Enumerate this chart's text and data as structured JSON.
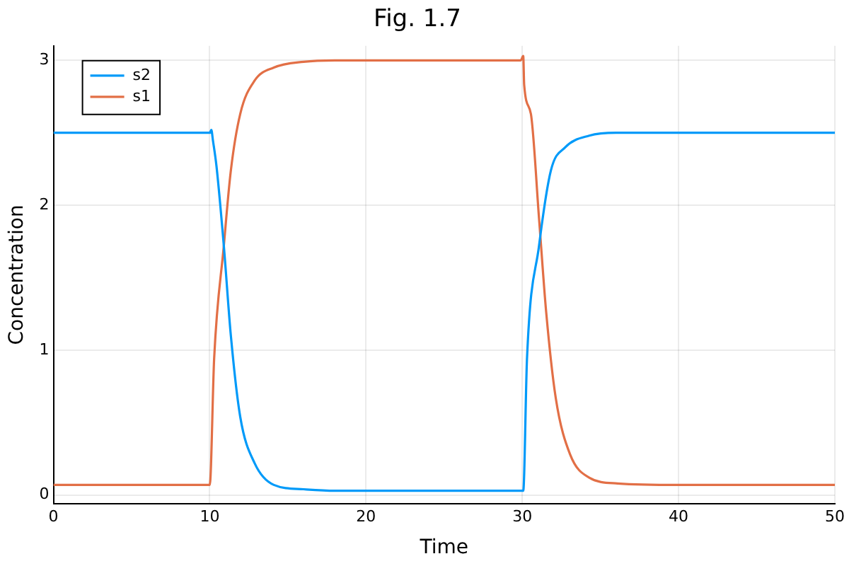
{
  "chart_data": {
    "type": "line",
    "title": "Fig. 1.7",
    "xlabel": "Time",
    "ylabel": "Concentration",
    "xlim": [
      0,
      50
    ],
    "xticks": [
      0,
      10,
      20,
      30,
      40,
      50
    ],
    "ylim": [
      -0.06,
      3.1
    ],
    "yticks": [
      0,
      1,
      2,
      3
    ],
    "grid": true,
    "legend": "top left",
    "marker": "none",
    "line_style": "solid",
    "series": [
      {
        "name": "s2",
        "color": "#009af9",
        "x": [
          0,
          10,
          10.1,
          10.2,
          10.43,
          10.9,
          11.35,
          11.95,
          12.87,
          14.1,
          16,
          18,
          20,
          25,
          30,
          30.06,
          30.3,
          31.07,
          31.83,
          32.75,
          34.28,
          36,
          40,
          45,
          50
        ],
        "values": [
          2.5,
          2.5,
          2.52,
          2.45,
          2.27,
          1.72,
          1.1,
          0.54,
          0.22,
          0.07,
          0.04,
          0.03,
          0.03,
          0.03,
          0.03,
          0.03,
          0.94,
          1.72,
          2.24,
          2.4,
          2.48,
          2.5,
          2.5,
          2.5,
          2.5
        ]
      },
      {
        "name": "s1",
        "color": "#e26f46",
        "x": [
          0,
          10,
          10.28,
          10.9,
          11.35,
          11.95,
          12.87,
          14.1,
          16,
          18,
          20,
          25,
          29.9,
          30.06,
          30.12,
          30.55,
          31.07,
          31.53,
          32.14,
          33.06,
          34.28,
          36.1,
          40,
          45,
          50
        ],
        "values": [
          0.07,
          0.07,
          0.94,
          1.72,
          2.24,
          2.63,
          2.86,
          2.95,
          2.99,
          3,
          3,
          3,
          3,
          3.03,
          2.83,
          2.63,
          1.91,
          1.26,
          0.67,
          0.28,
          0.12,
          0.08,
          0.07,
          0.07,
          0.07
        ]
      }
    ]
  }
}
